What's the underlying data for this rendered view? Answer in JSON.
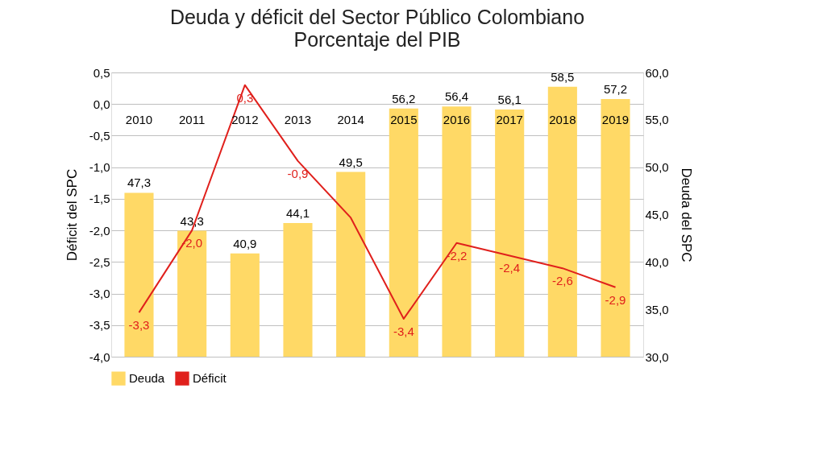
{
  "chart_data": {
    "type": "bar",
    "title": "Deuda y déficit del Sector Público Colombiano",
    "subtitle": "Porcentaje del PIB",
    "ylabel": "Déficit del SPC",
    "y2label": "Deuda del SPC",
    "categories": [
      "2010",
      "2011",
      "2012",
      "2013",
      "2014",
      "2015",
      "2016",
      "2017",
      "2018",
      "2019"
    ],
    "series": [
      {
        "name": "Deuda",
        "axis": "y2",
        "color": "#ffd966",
        "values": [
          47.3,
          43.3,
          40.9,
          44.1,
          49.5,
          56.2,
          56.4,
          56.1,
          58.5,
          57.2
        ],
        "value_labels": [
          "47,3",
          "43,3",
          "40,9",
          "44,1",
          "49,5",
          "56,2",
          "56,4",
          "56,1",
          "58,5",
          "57,2"
        ]
      },
      {
        "name": "Déficit",
        "type": "line",
        "axis": "y",
        "color": "#e0201c",
        "values": [
          -3.3,
          -2.0,
          0.3,
          -0.9,
          -1.8,
          -3.4,
          -2.2,
          -2.4,
          -2.6,
          -2.9
        ],
        "value_labels": [
          "-3,3",
          "-2,0",
          "0,3",
          "-0,9",
          null,
          "-3,4",
          "-2,2",
          "-2,4",
          "-2,6",
          "-2,9"
        ]
      }
    ],
    "ylim": [
      -4.0,
      0.5
    ],
    "yticks": [
      {
        "value": 0.5,
        "label": "0,5"
      },
      {
        "value": 0,
        "label": "0,0"
      },
      {
        "value": -0.5,
        "label": "-0,5"
      },
      {
        "value": -1,
        "label": "-1,0"
      },
      {
        "value": -1.5,
        "label": "-1,5"
      },
      {
        "value": -2,
        "label": "-2,0"
      },
      {
        "value": -2.5,
        "label": "-2,5"
      },
      {
        "value": -3,
        "label": "-3,0"
      },
      {
        "value": -3.5,
        "label": "-3,5"
      },
      {
        "value": -4,
        "label": "-4,0"
      }
    ],
    "y2lim": [
      30,
      60
    ],
    "y2ticks": [
      {
        "value": 60,
        "label": "60,0"
      },
      {
        "value": 55,
        "label": "55,0"
      },
      {
        "value": 50,
        "label": "50,0"
      },
      {
        "value": 45,
        "label": "45,0"
      },
      {
        "value": 40,
        "label": "40,0"
      },
      {
        "value": 35,
        "label": "35,0"
      },
      {
        "value": 30,
        "label": "30,0"
      }
    ],
    "grid": "y",
    "legend": "bottom"
  }
}
